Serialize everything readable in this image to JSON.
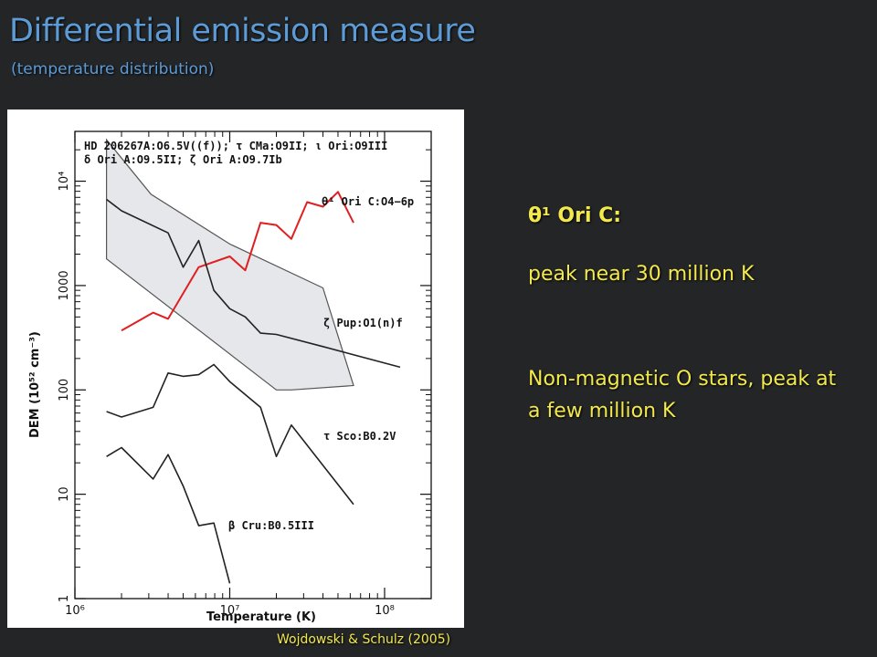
{
  "slide": {
    "title": "Differential emission measure",
    "subtitle": "(temperature distribution)",
    "note_heading": "θ¹ Ori C:",
    "note_peak": "peak near 30 million K",
    "note_nonmagnetic": "Non-magnetic O stars, peak at a few million K",
    "credit": "Wojdowski & Schulz (2005)"
  },
  "colors": {
    "title": "#5d9bd6",
    "note_text": "#f3e84c",
    "theta1_ori_c_line": "#e02020",
    "other_lines": "#222222",
    "band_fill": "#e6e7ea"
  },
  "chart_data": {
    "type": "line",
    "xlabel": "Temperature (K)",
    "ylabel": "DEM (10⁵² cm⁻³)",
    "xscale": "log",
    "yscale": "log",
    "xlim": [
      1000000,
      200000000
    ],
    "ylim": [
      1,
      30000
    ],
    "x_ticks": [
      "10⁶",
      "10⁷",
      "10⁸"
    ],
    "y_ticks": [
      "1",
      "10",
      "100",
      "1000",
      "10⁴"
    ],
    "legend_lines": [
      "HD 206267A:O6.5V((f)); τ CMa:O9II; ι Ori:O9III",
      "δ Ori A:O9.5II; ζ Ori A:O9.7Ib"
    ],
    "band": {
      "name": "",
      "polygon": [
        [
          1600000,
          25000
        ],
        [
          3100000,
          7500
        ],
        [
          10000000,
          2500
        ],
        [
          40000000,
          950
        ],
        [
          63000000,
          110
        ],
        [
          25000000,
          100
        ],
        [
          20000000,
          100
        ],
        [
          1600000,
          1800
        ]
      ]
    },
    "series": [
      {
        "name": "θ¹ Ori C:O4−6p",
        "color": "#e02020",
        "points": [
          [
            2000000,
            370
          ],
          [
            3200000,
            550
          ],
          [
            4000000,
            480
          ],
          [
            6300000,
            1500
          ],
          [
            10000000,
            1900
          ],
          [
            12600000,
            1400
          ],
          [
            15800000,
            4000
          ],
          [
            20000000,
            3800
          ],
          [
            25000000,
            2800
          ],
          [
            31600000,
            6300
          ],
          [
            40000000,
            5700
          ],
          [
            50000000,
            7900
          ],
          [
            63000000,
            4000
          ]
        ]
      },
      {
        "name": "ζ Pup:O1(n)f",
        "color": "#222222",
        "points": [
          [
            1600000,
            6700
          ],
          [
            2000000,
            5200
          ],
          [
            4000000,
            3200
          ],
          [
            5000000,
            1500
          ],
          [
            6300000,
            2700
          ],
          [
            7900000,
            900
          ],
          [
            10000000,
            600
          ],
          [
            12600000,
            500
          ],
          [
            15800000,
            350
          ],
          [
            20000000,
            340
          ],
          [
            40000000,
            260
          ],
          [
            126000000,
            165
          ]
        ]
      },
      {
        "name": "τ Sco:B0.2V",
        "color": "#222222",
        "points": [
          [
            1600000,
            62
          ],
          [
            2000000,
            55
          ],
          [
            3200000,
            68
          ],
          [
            4000000,
            145
          ],
          [
            5000000,
            135
          ],
          [
            6300000,
            140
          ],
          [
            7900000,
            175
          ],
          [
            10000000,
            120
          ],
          [
            15800000,
            68
          ],
          [
            20000000,
            23
          ],
          [
            25000000,
            46
          ],
          [
            63000000,
            8
          ]
        ]
      },
      {
        "name": "β Cru:B0.5III",
        "color": "#222222",
        "points": [
          [
            1600000,
            23
          ],
          [
            2000000,
            28
          ],
          [
            3200000,
            14
          ],
          [
            4000000,
            24
          ],
          [
            5000000,
            12
          ],
          [
            6300000,
            5
          ],
          [
            7900000,
            5.3
          ],
          [
            10000000,
            1.4
          ]
        ]
      }
    ],
    "annotations": [
      "θ¹ Ori C:O4−6p",
      "ζ Pup:O1(n)f",
      "τ Sco:B0.2V",
      "β Cru:B0.5III"
    ]
  }
}
